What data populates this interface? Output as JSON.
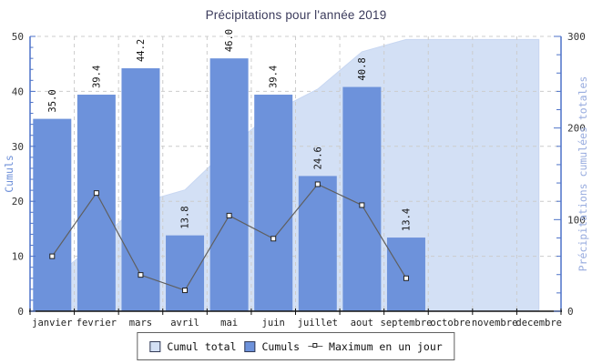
{
  "chart_data": {
    "type": "combo",
    "title": "Précipitations pour l'année 2019",
    "categories": [
      "janvier",
      "fevrier",
      "mars",
      "avril",
      "mai",
      "juin",
      "juillet",
      "aout",
      "septembre",
      "octobre",
      "novembre",
      "decembre"
    ],
    "series": [
      {
        "name": "Cumul total",
        "type": "area",
        "axis": "right",
        "values": [
          35.0,
          74.4,
          118.6,
          132.4,
          178.4,
          217.8,
          242.4,
          283.2,
          296.6,
          296.6,
          296.6,
          296.6
        ]
      },
      {
        "name": "Cumuls",
        "type": "bar",
        "axis": "left",
        "values": [
          35.0,
          39.4,
          44.2,
          13.8,
          46.0,
          39.4,
          24.6,
          40.8,
          13.4
        ],
        "labels": [
          "35.0",
          "39.4",
          "44.2",
          "13.8",
          "46.0",
          "39.4",
          "24.6",
          "40.8",
          "13.4"
        ]
      },
      {
        "name": "Maximum en un jour",
        "type": "line",
        "axis": "left",
        "values": [
          10.0,
          21.5,
          6.6,
          3.8,
          17.4,
          13.2,
          23.1,
          19.3,
          6.0
        ]
      }
    ],
    "left_axis": {
      "title": "Cumuls",
      "min": 0,
      "max": 50,
      "major_ticks": [
        0,
        10,
        20,
        30,
        40,
        50
      ],
      "minor_step": 2
    },
    "right_axis": {
      "title": "Précipitations cumulées totales",
      "min": 0,
      "max": 300,
      "major_ticks": [
        0,
        100,
        200,
        300
      ],
      "minor_step": 20
    },
    "legend_position": "bottom",
    "grid": true,
    "colors": {
      "bar": "#6d92db",
      "area": "#d3e0f5",
      "area_edge": "#c8d7f2",
      "line": "#5f5f5f",
      "marker_fill": "#ffffff",
      "marker_edge": "#222222",
      "grid": "#cccccc",
      "value_axis": "#4d72c8",
      "bottom_axis": "#111111",
      "tick_text": "#333333",
      "month_text": "#222222",
      "bar_label_text": "#111111",
      "title_text": "#3b3b5c",
      "left_axis_title": "#6d8fd8",
      "right_axis_title": "#98acdf"
    }
  }
}
